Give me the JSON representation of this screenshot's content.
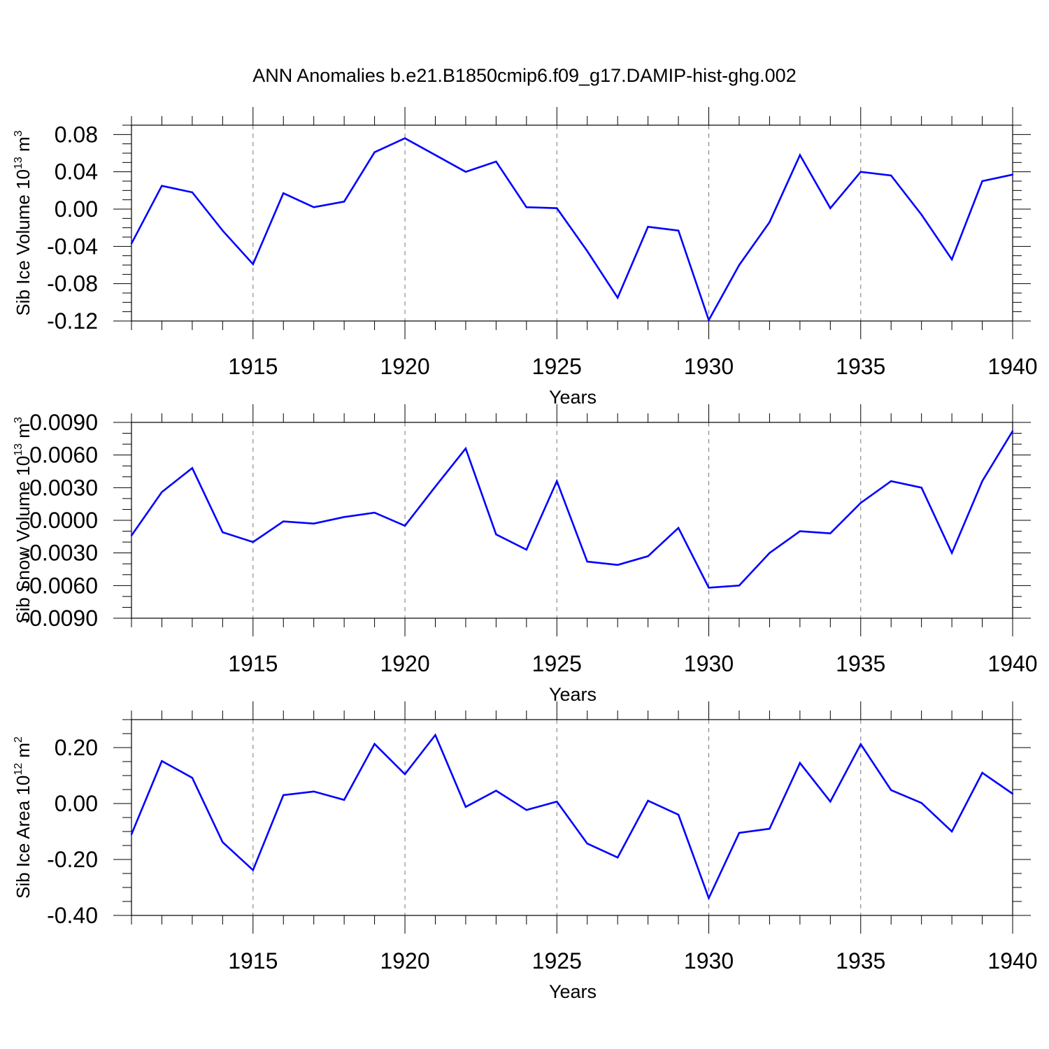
{
  "title": "ANN Anomalies b.e21.B1850cmip6.f09_g17.DAMIP-hist-ghg.002",
  "colors": {
    "line": "#0000ff",
    "axis": "#000000",
    "grid": "#777777"
  },
  "chart_data": [
    {
      "type": "line",
      "title": "ANN Anomalies b.e21.B1850cmip6.f09_g17.DAMIP-hist-ghg.002",
      "ylabel": "Sib Ice Volume 10",
      "ylabel_exp": "13",
      "ylabel_unit": " m",
      "ylabel_unit_exp": "3",
      "xlabel": "Years",
      "xlim": [
        1911,
        1940
      ],
      "ylim": [
        -0.12,
        0.09
      ],
      "yticks": [
        -0.12,
        -0.08,
        -0.04,
        0.0,
        0.04,
        0.08
      ],
      "ytick_labels": [
        "-0.12",
        "-0.08",
        "-0.04",
        "0.00",
        "0.04",
        "0.08"
      ],
      "yminor": 0.01,
      "xticks": [
        1915,
        1920,
        1925,
        1930,
        1935,
        1940
      ],
      "xtick_labels": [
        "1915",
        "1920",
        "1925",
        "1930",
        "1935",
        "1940"
      ],
      "x": [
        1911,
        1912,
        1913,
        1914,
        1915,
        1916,
        1917,
        1918,
        1919,
        1920,
        1921,
        1922,
        1923,
        1924,
        1925,
        1926,
        1927,
        1928,
        1929,
        1930,
        1931,
        1932,
        1933,
        1934,
        1935,
        1936,
        1937,
        1938,
        1939,
        1940
      ],
      "values": [
        -0.037,
        0.025,
        0.018,
        -0.023,
        -0.059,
        0.017,
        0.002,
        0.008,
        0.061,
        0.076,
        0.058,
        0.04,
        0.051,
        0.002,
        0.001,
        -0.045,
        -0.095,
        -0.019,
        -0.023,
        -0.119,
        -0.06,
        -0.014,
        0.058,
        0.001,
        0.04,
        0.036,
        -0.006,
        -0.054,
        0.03,
        0.037
      ]
    },
    {
      "type": "line",
      "ylabel": "Sib Snow Volume 10",
      "ylabel_exp": "13",
      "ylabel_unit": " m",
      "ylabel_unit_exp": "3",
      "xlabel": "Years",
      "xlim": [
        1911,
        1940
      ],
      "ylim": [
        -0.009,
        0.009
      ],
      "yticks": [
        -0.009,
        -0.006,
        -0.003,
        0.0,
        0.003,
        0.006,
        0.009
      ],
      "ytick_labels": [
        "-0.0090",
        "-0.0060",
        "-0.0030",
        "0.0000",
        "0.0030",
        "0.0060",
        "0.0090"
      ],
      "yminor": 0.001,
      "xticks": [
        1915,
        1920,
        1925,
        1930,
        1935,
        1940
      ],
      "xtick_labels": [
        "1915",
        "1920",
        "1925",
        "1930",
        "1935",
        "1940"
      ],
      "x": [
        1911,
        1912,
        1913,
        1914,
        1915,
        1916,
        1917,
        1918,
        1919,
        1920,
        1921,
        1922,
        1923,
        1924,
        1925,
        1926,
        1927,
        1928,
        1929,
        1930,
        1931,
        1932,
        1933,
        1934,
        1935,
        1936,
        1937,
        1938,
        1939,
        1940
      ],
      "values": [
        -0.0014,
        0.0026,
        0.0048,
        -0.0011,
        -0.002,
        -0.0001,
        -0.0003,
        0.0003,
        0.0007,
        -0.0005,
        0.0031,
        0.0066,
        -0.0013,
        -0.0027,
        0.0036,
        -0.0038,
        -0.0041,
        -0.0033,
        -0.0007,
        -0.0062,
        -0.006,
        -0.003,
        -0.001,
        -0.0012,
        0.0016,
        0.0036,
        0.003,
        -0.003,
        0.0036,
        0.0082
      ]
    },
    {
      "type": "line",
      "ylabel": "Sib Ice Area 10",
      "ylabel_exp": "12",
      "ylabel_unit": " m",
      "ylabel_unit_exp": "2",
      "xlabel": "Years",
      "xlim": [
        1911,
        1940
      ],
      "ylim": [
        -0.4,
        0.3
      ],
      "yticks": [
        -0.4,
        -0.2,
        0.0,
        0.2
      ],
      "ytick_labels": [
        "-0.40",
        "-0.20",
        "0.00",
        "0.20"
      ],
      "yminor": 0.05,
      "xticks": [
        1915,
        1920,
        1925,
        1930,
        1935,
        1940
      ],
      "xtick_labels": [
        "1915",
        "1920",
        "1925",
        "1930",
        "1935",
        "1940"
      ],
      "x": [
        1911,
        1912,
        1913,
        1914,
        1915,
        1916,
        1917,
        1918,
        1919,
        1920,
        1921,
        1922,
        1923,
        1924,
        1925,
        1926,
        1927,
        1928,
        1929,
        1930,
        1931,
        1932,
        1933,
        1934,
        1935,
        1936,
        1937,
        1938,
        1939,
        1940
      ],
      "values": [
        -0.11,
        0.152,
        0.092,
        -0.138,
        -0.238,
        0.03,
        0.043,
        0.013,
        0.213,
        0.105,
        0.245,
        -0.012,
        0.046,
        -0.023,
        0.007,
        -0.143,
        -0.193,
        0.01,
        -0.04,
        -0.338,
        -0.105,
        -0.09,
        0.145,
        0.007,
        0.212,
        0.048,
        0.002,
        -0.1,
        0.11,
        0.035
      ]
    }
  ]
}
